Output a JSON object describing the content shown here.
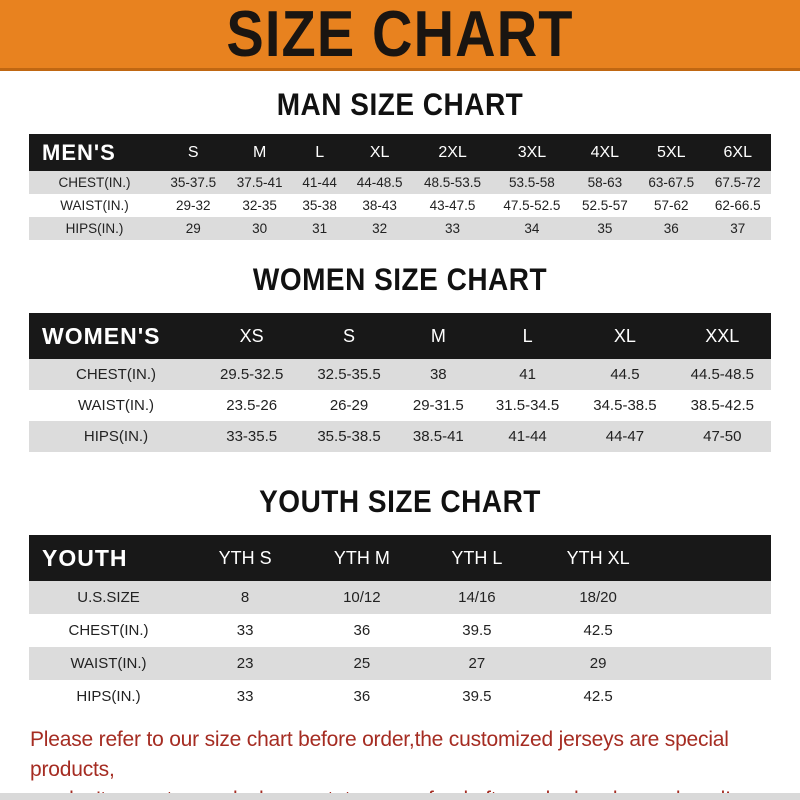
{
  "page": {
    "header_title": "SIZE CHART"
  },
  "colors": {
    "banner_orange": "#E8821F",
    "banner_border": "#C06712",
    "bar_black": "#181818",
    "row_gray": "#DCDCDC",
    "notice_red": "#A52C22"
  },
  "tables": [
    {
      "id": "men",
      "title": "MAN SIZE CHART",
      "header_label": "MEN'S",
      "columns": [
        "S",
        "M",
        "L",
        "XL",
        "2XL",
        "3XL",
        "4XL",
        "5XL",
        "6XL"
      ],
      "rows": [
        {
          "label": "CHEST(IN.)",
          "values": [
            "35-37.5",
            "37.5-41",
            "41-44",
            "44-48.5",
            "48.5-53.5",
            "53.5-58",
            "58-63",
            "63-67.5",
            "67.5-72"
          ]
        },
        {
          "label": "WAIST(IN.)",
          "values": [
            "29-32",
            "32-35",
            "35-38",
            "38-43",
            "43-47.5",
            "47.5-52.5",
            "52.5-57",
            "57-62",
            "62-66.5"
          ]
        },
        {
          "label": "HIPS(IN.)",
          "values": [
            "29",
            "30",
            "31",
            "32",
            "33",
            "34",
            "35",
            "36",
            "37"
          ]
        }
      ]
    },
    {
      "id": "women",
      "title": "WOMEN SIZE CHART",
      "header_label": "WOMEN'S",
      "columns": [
        "XS",
        "S",
        "M",
        "L",
        "XL",
        "XXL"
      ],
      "rows": [
        {
          "label": "CHEST(IN.)",
          "values": [
            "29.5-32.5",
            "32.5-35.5",
            "38",
            "41",
            "44.5",
            "44.5-48.5"
          ]
        },
        {
          "label": "WAIST(IN.)",
          "values": [
            "23.5-26",
            "26-29",
            "29-31.5",
            "31.5-34.5",
            "34.5-38.5",
            "38.5-42.5"
          ]
        },
        {
          "label": "HIPS(IN.)",
          "values": [
            "33-35.5",
            "35.5-38.5",
            "38.5-41",
            "41-44",
            "44-47",
            "47-50"
          ]
        }
      ]
    },
    {
      "id": "youth",
      "title": "YOUTH SIZE CHART",
      "header_label": "YOUTH",
      "columns": [
        "YTH S",
        "YTH M",
        "YTH L",
        "YTH XL"
      ],
      "rows": [
        {
          "label": "U.S.SIZE",
          "values": [
            "8",
            "10/12",
            "14/16",
            "18/20"
          ]
        },
        {
          "label": "CHEST(IN.)",
          "values": [
            "33",
            "36",
            "39.5",
            "42.5"
          ]
        },
        {
          "label": "WAIST(IN.)",
          "values": [
            "23",
            "25",
            "27",
            "29"
          ]
        },
        {
          "label": "HIPS(IN.)",
          "values": [
            "33",
            "36",
            "39.5",
            "42.5"
          ]
        }
      ]
    }
  ],
  "notice": {
    "line1": "Please refer to our size chart before order,the customized jerseys are special products,",
    "line2": "we don't accept cancel, change, teturn or refund after order has been placed!"
  }
}
